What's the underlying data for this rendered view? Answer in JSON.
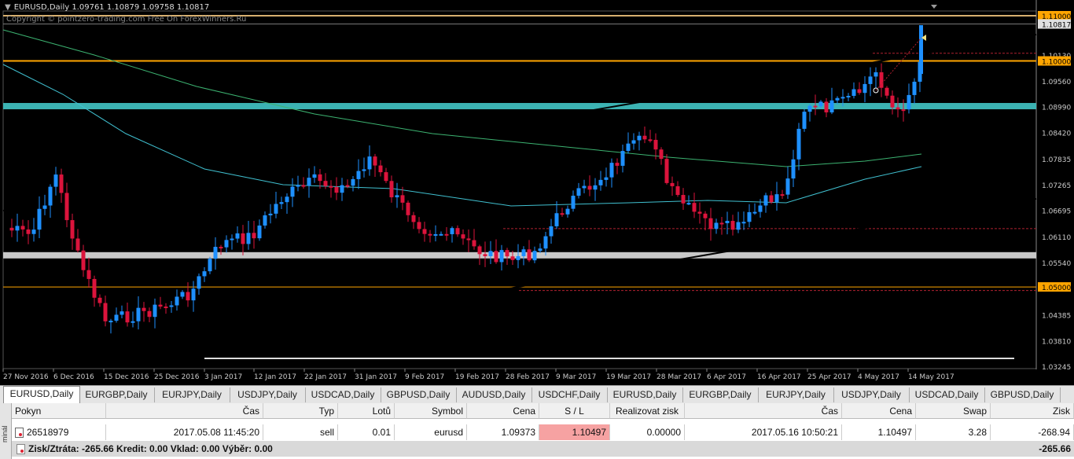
{
  "chart": {
    "header": "EURUSD,Daily  1.09761 1.10879 1.09758 1.10817",
    "watermark": "Copyright © pointzero-trading.com Free On ForexWinners.Ru",
    "price_labels": [
      "1.11000",
      "1.10817",
      "1.10130",
      "1.10000",
      "1.09560",
      "1.08990",
      "1.08420",
      "1.07835",
      "1.07265",
      "1.06695",
      "1.06110",
      "1.05540",
      "1.05000",
      "1.04385",
      "1.03810",
      "1.03245"
    ],
    "highlight_labels": [
      "1.11000",
      "1.10817",
      "1.10000",
      "1.05000"
    ],
    "date_labels": [
      "27 Nov 2016",
      "6 Dec 2016",
      "15 Dec 2016",
      "25 Dec 2016",
      "3 Jan 2017",
      "12 Jan 2017",
      "22 Jan 2017",
      "31 Jan 2017",
      "9 Feb 2017",
      "19 Feb 2017",
      "28 Feb 2017",
      "9 Mar 2017",
      "19 Mar 2017",
      "28 Mar 2017",
      "6 Apr 2017",
      "16 Apr 2017",
      "25 Apr 2017",
      "4 May 2017",
      "14 May 2017"
    ],
    "colors": {
      "bull": "#1e90ff",
      "bear": "#dc143c",
      "orange": "#ffa500",
      "teal": "#3cb3b3",
      "grey_band": "#c8c8c8",
      "ma_green": "#3cb371",
      "ma_cyan": "#40c0d0"
    }
  },
  "tabs": [
    "EURUSD,Daily",
    "EURGBP,Daily",
    "EURJPY,Daily",
    "USDJPY,Daily",
    "USDCAD,Daily",
    "GBPUSD,Daily",
    "AUDUSD,Daily",
    "USDCHF,Daily",
    "EURUSD,Daily",
    "EURGBP,Daily",
    "EURJPY,Daily",
    "USDJPY,Daily",
    "USDCAD,Daily",
    "GBPUSD,Daily"
  ],
  "active_tab": 0,
  "terminal": {
    "side_label": "minál",
    "headers": {
      "pokyn": "Pokyn",
      "cas": "Čas",
      "typ": "Typ",
      "lotu": "Lotů",
      "symbol": "Symbol",
      "cena": "Cena",
      "sl": "S / L",
      "realizovat": "Realizovat zisk",
      "cas2": "Čas",
      "cena2": "Cena",
      "swap": "Swap",
      "zisk": "Zisk"
    },
    "order": {
      "pokyn": "26518979",
      "cas": "2017.05.08 11:45:20",
      "typ": "sell",
      "lotu": "0.01",
      "symbol": "eurusd",
      "cena": "1.09373",
      "sl": "1.10497",
      "realizovat": "0.00000",
      "cas2": "2017.05.16 10:50:21",
      "cena2": "1.10497",
      "swap": "3.28",
      "zisk": "-268.94"
    },
    "summary": {
      "text": "Zisk/Ztráta: -265.66  Kredit: 0.00  Vklad: 0.00  Výběr: 0.00",
      "total": "-265.66"
    }
  }
}
